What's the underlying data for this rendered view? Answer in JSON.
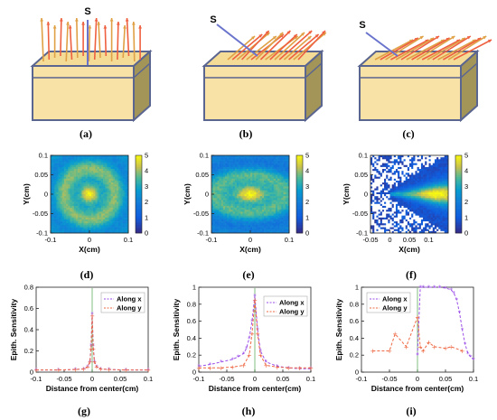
{
  "figure": {
    "captions": [
      "(a)",
      "(b)",
      "(c)",
      "(d)",
      "(e)",
      "(f)",
      "(g)",
      "(h)",
      "(i)"
    ],
    "schematics": [
      {
        "source_label": "S",
        "beam": "normal incidence"
      },
      {
        "source_label": "S",
        "beam": "oblique incidence"
      },
      {
        "source_label": "S",
        "beam": "grazing incidence"
      }
    ],
    "colors": {
      "block_top": "#f5dc96",
      "block_front": "#f8e2a6",
      "block_side": "#a39558",
      "block_edge": "#5a6590",
      "arrow_orange": "#e0a045",
      "arrow_red": "#ee6040",
      "source_line": "#6a74cc",
      "series_x": "#9b4fe8",
      "series_y": "#ee6a45",
      "series_mark": "#3c9a3c"
    }
  },
  "chart_data": [
    {
      "type": "heatmap",
      "panel": "(d)",
      "xlabel": "X(cm)",
      "ylabel": "Y(cm)",
      "xlim": [
        -0.1,
        0.1
      ],
      "ylim": [
        -0.1,
        0.1
      ],
      "xticks": [
        "-0.1",
        "0",
        "0.1"
      ],
      "yticks": [
        "0.1",
        "0.05",
        "0",
        "-0.05",
        "-0.1"
      ],
      "colorbar": {
        "min": 0,
        "max": 5,
        "ticks": [
          "5",
          "4",
          "3",
          "2",
          "1",
          "0"
        ]
      },
      "pattern": "concentric rings centered at origin"
    },
    {
      "type": "heatmap",
      "panel": "(e)",
      "xlabel": "X(cm)",
      "ylabel": "Y(cm)",
      "xlim": [
        -0.1,
        0.1
      ],
      "ylim": [
        -0.1,
        0.1
      ],
      "xticks": [
        "-0.1",
        "0",
        "0.1"
      ],
      "yticks": [
        "0.1",
        "0.05",
        "0",
        "-0.05",
        "-0.1"
      ],
      "colorbar": {
        "min": 0,
        "max": 5,
        "ticks": [
          "5",
          "4",
          "3",
          "2",
          "1",
          "0"
        ]
      },
      "pattern": "elliptical rings elongated along x"
    },
    {
      "type": "heatmap",
      "panel": "(f)",
      "xlabel": "X(cm)",
      "ylabel": "Y(cm)",
      "xlim": [
        -0.05,
        0.15
      ],
      "ylim": [
        -0.1,
        0.1
      ],
      "xticks": [
        "-0.05",
        "0",
        "0.05",
        "0.1"
      ],
      "yticks": [
        "0.1",
        "0.05",
        "0",
        "-0.05",
        "-0.1"
      ],
      "colorbar": {
        "min": 0,
        "max": 5,
        "ticks": [
          "5",
          "4",
          "3",
          "2",
          "1",
          "0"
        ]
      },
      "pattern": "wedge extending toward +x with peak near x=0.12"
    },
    {
      "type": "line",
      "panel": "(g)",
      "xlabel": "Distance from center(cm)",
      "ylabel": "Epith. Sensitivity",
      "xlim": [
        -0.1,
        0.1
      ],
      "ylim": [
        0,
        0.8
      ],
      "xticks": [
        "-0.1",
        "-0.05",
        "0",
        "0.05",
        "0.1"
      ],
      "yticks": [
        "0",
        "0.2",
        "0.4",
        "0.6",
        "0.8"
      ],
      "legend": [
        "Along x",
        "Along y"
      ],
      "series": [
        {
          "name": "Along x",
          "x": [
            -0.1,
            -0.06,
            -0.03,
            -0.015,
            -0.008,
            -0.004,
            -0.002,
            0,
            0.002,
            0.004,
            0.008,
            0.015,
            0.03,
            0.06,
            0.1
          ],
          "values": [
            0.02,
            0.02,
            0.025,
            0.03,
            0.05,
            0.1,
            0.25,
            0.55,
            0.25,
            0.1,
            0.05,
            0.03,
            0.025,
            0.02,
            0.02
          ]
        },
        {
          "name": "Along y",
          "x": [
            -0.1,
            -0.06,
            -0.03,
            -0.015,
            -0.008,
            -0.004,
            -0.002,
            0,
            0.002,
            0.004,
            0.008,
            0.015,
            0.03,
            0.06,
            0.1
          ],
          "values": [
            0.02,
            0.02,
            0.025,
            0.03,
            0.05,
            0.1,
            0.22,
            0.53,
            0.22,
            0.1,
            0.05,
            0.03,
            0.025,
            0.02,
            0.02
          ]
        }
      ]
    },
    {
      "type": "line",
      "panel": "(h)",
      "xlabel": "Distance from center(cm)",
      "ylabel": "Epith. Sensitivity",
      "xlim": [
        -0.1,
        0.1
      ],
      "ylim": [
        0,
        1
      ],
      "xticks": [
        "-0.1",
        "-0.05",
        "0",
        "0.05",
        "0.1"
      ],
      "yticks": [
        "0",
        "0.2",
        "0.4",
        "0.6",
        "0.8",
        "1"
      ],
      "legend": [
        "Along x",
        "Along y"
      ],
      "series": [
        {
          "name": "Along x",
          "x": [
            -0.1,
            -0.08,
            -0.06,
            -0.04,
            -0.03,
            -0.02,
            -0.015,
            -0.01,
            -0.005,
            0,
            0.005,
            0.01,
            0.02,
            0.04,
            0.06,
            0.08,
            0.1
          ],
          "values": [
            0.07,
            0.09,
            0.12,
            0.15,
            0.18,
            0.22,
            0.28,
            0.4,
            0.6,
            0.9,
            0.5,
            0.25,
            0.12,
            0.07,
            0.05,
            0.04,
            0.04
          ]
        },
        {
          "name": "Along y",
          "x": [
            -0.1,
            -0.08,
            -0.06,
            -0.04,
            -0.02,
            -0.01,
            -0.005,
            0,
            0.005,
            0.01,
            0.02,
            0.04,
            0.06,
            0.08,
            0.1
          ],
          "values": [
            0.05,
            0.05,
            0.05,
            0.06,
            0.08,
            0.2,
            0.45,
            0.85,
            0.45,
            0.2,
            0.08,
            0.06,
            0.05,
            0.05,
            0.05
          ]
        }
      ]
    },
    {
      "type": "line",
      "panel": "(i)",
      "xlabel": "Distance from center(cm)",
      "ylabel": "Epith. Sensitivity",
      "xlim": [
        -0.1,
        0.1
      ],
      "ylim": [
        0,
        1
      ],
      "xticks": [
        "-0.1",
        "-0.05",
        "0",
        "0.05",
        "0.1"
      ],
      "yticks": [
        "0",
        "0.2",
        "0.4",
        "0.6",
        "0.8",
        "1"
      ],
      "legend": [
        "Along x",
        "Along y"
      ],
      "series": [
        {
          "name": "Along x",
          "x": [
            0,
            0.005,
            0.01,
            0.02,
            0.03,
            0.04,
            0.05,
            0.06,
            0.065,
            0.07,
            0.075,
            0.08,
            0.085,
            0.09,
            0.095,
            0.1
          ],
          "values": [
            0.2,
            1,
            1,
            1,
            1,
            1,
            0.99,
            0.97,
            0.93,
            0.85,
            0.7,
            0.5,
            0.33,
            0.22,
            0.18,
            0.15
          ]
        },
        {
          "name": "Along y",
          "x": [
            -0.08,
            -0.05,
            -0.04,
            -0.02,
            0,
            0.005,
            0.01,
            0.02,
            0.03,
            0.05,
            0.06,
            0.08
          ],
          "values": [
            0.25,
            0.25,
            0.45,
            0.3,
            0.65,
            0.3,
            0.25,
            0.35,
            0.3,
            0.28,
            0.3,
            0.25
          ]
        }
      ]
    }
  ]
}
